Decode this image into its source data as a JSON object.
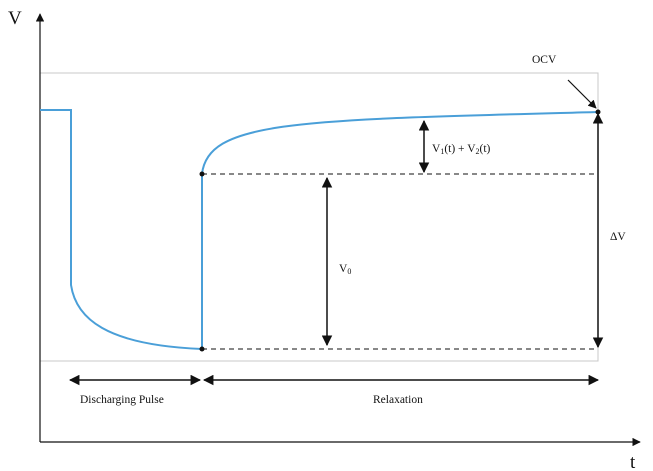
{
  "diagram": {
    "axes": {
      "y_label": "V",
      "x_label": "t"
    },
    "annotations": {
      "ocv": "OCV",
      "v1v2_prefix": "V",
      "v1v2_sub1": "1",
      "v1v2_mid": "(t) + V",
      "v1v2_sub2": "2",
      "v1v2_suffix": "(t)",
      "v0_main": "V",
      "v0_sub": "0",
      "delta_v": "ΔV"
    },
    "phases": {
      "discharging": "Discharging Pulse",
      "relaxation": "Relaxation"
    },
    "colors": {
      "curve": "#4a9fd8",
      "frame": "#c8c8c8",
      "ink": "#111111"
    }
  }
}
